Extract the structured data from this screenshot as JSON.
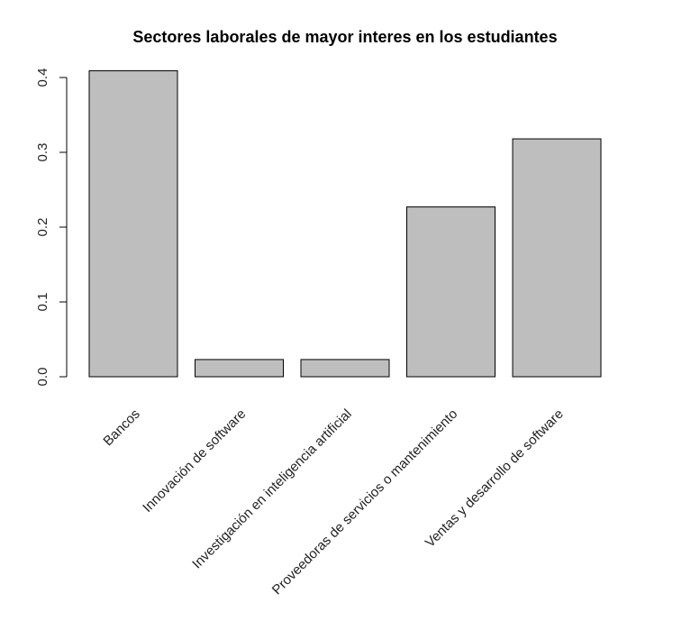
{
  "chart_data": {
    "type": "bar",
    "title": "Sectores laborales de mayor interes en los estudiantes",
    "xlabel": "",
    "ylabel": "",
    "categories": [
      "Bancos",
      "Innovación de software",
      "Investigación en inteligencia artificial",
      "Proveedoras de servicios o mantenimiento",
      "Ventas y desarrollo de software"
    ],
    "values": [
      0.409,
      0.023,
      0.023,
      0.227,
      0.318
    ],
    "ylim": [
      0,
      0.4
    ],
    "yticks": [
      0.0,
      0.1,
      0.2,
      0.3,
      0.4
    ],
    "ytick_labels": [
      "0.0",
      "0.1",
      "0.2",
      "0.3",
      "0.4"
    ],
    "bar_color": "#bebebe",
    "bar_border_color": "#000000",
    "grid": false
  }
}
